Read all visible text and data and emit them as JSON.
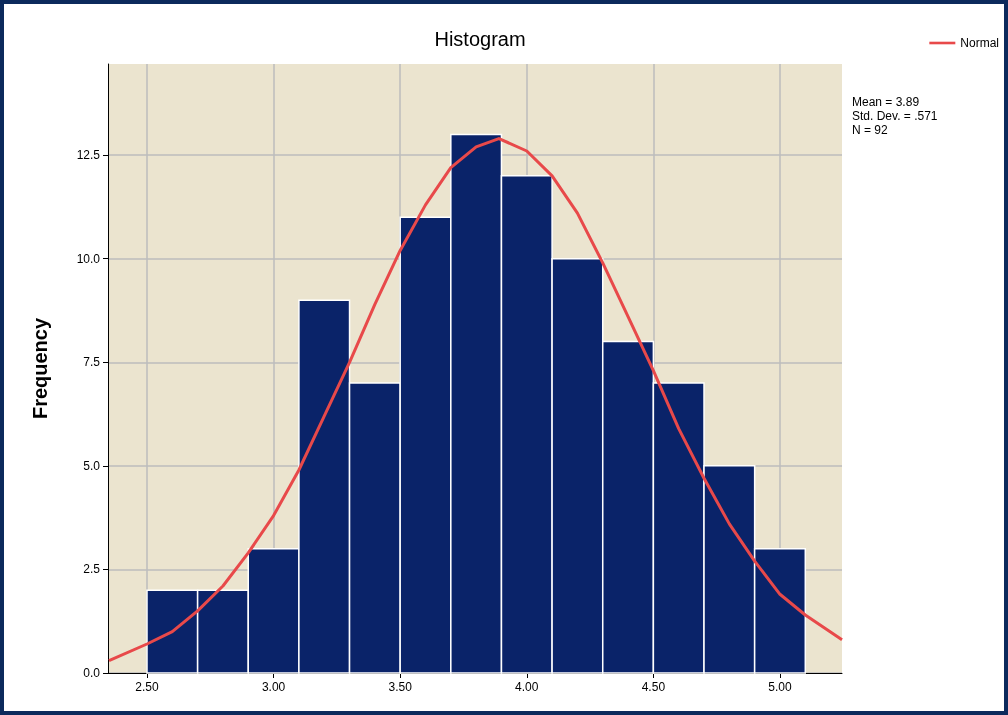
{
  "chart_data": {
    "type": "histogram",
    "title": "Histogram",
    "ylabel": "Frequency",
    "bins": [
      2.5,
      2.7,
      2.9,
      3.1,
      3.3,
      3.5,
      3.7,
      3.9,
      4.1,
      4.3,
      4.5,
      4.7,
      4.9,
      5.1
    ],
    "series": [
      {
        "type": "histogram",
        "color": "#0a2369",
        "values": [
          2,
          2,
          3,
          9,
          7,
          11,
          13,
          12,
          10,
          8,
          7,
          5,
          3
        ]
      },
      {
        "type": "line",
        "name": "Normal",
        "color": "#e8494a",
        "x": [
          2.35,
          2.5,
          2.6,
          2.7,
          2.8,
          2.9,
          3.0,
          3.1,
          3.2,
          3.3,
          3.4,
          3.5,
          3.6,
          3.7,
          3.8,
          3.89,
          4.0,
          4.1,
          4.2,
          4.3,
          4.4,
          4.5,
          4.6,
          4.7,
          4.8,
          4.9,
          5.0,
          5.1,
          5.245
        ],
        "values": [
          0.3,
          0.7,
          1.0,
          1.5,
          2.1,
          2.9,
          3.8,
          4.9,
          6.2,
          7.5,
          8.9,
          10.2,
          11.3,
          12.2,
          12.7,
          12.9,
          12.6,
          12.0,
          11.1,
          9.9,
          8.6,
          7.3,
          5.9,
          4.7,
          3.6,
          2.7,
          1.9,
          1.4,
          0.8
        ]
      }
    ],
    "xlim": [
      2.346,
      5.245
    ],
    "ylim": [
      0,
      14.7
    ],
    "xticks": [
      {
        "value": 2.5,
        "label": "2.50"
      },
      {
        "value": 3,
        "label": "3.00"
      },
      {
        "value": 3.5,
        "label": "3.50"
      },
      {
        "value": 4,
        "label": "4.00"
      },
      {
        "value": 4.5,
        "label": "4.50"
      },
      {
        "value": 5,
        "label": "5.00"
      }
    ],
    "yticks": [
      {
        "value": 0,
        "label": "0.0"
      },
      2.5,
      {
        "value": 5,
        "label": "5.0"
      },
      7.5,
      {
        "value": 10,
        "label": "10.0"
      },
      12.5
    ],
    "grid": true,
    "legend": "top right",
    "marker": "none",
    "annotations": [
      "Mean = 3.89",
      "Std. Dev. = .571",
      "N = 92"
    ]
  }
}
